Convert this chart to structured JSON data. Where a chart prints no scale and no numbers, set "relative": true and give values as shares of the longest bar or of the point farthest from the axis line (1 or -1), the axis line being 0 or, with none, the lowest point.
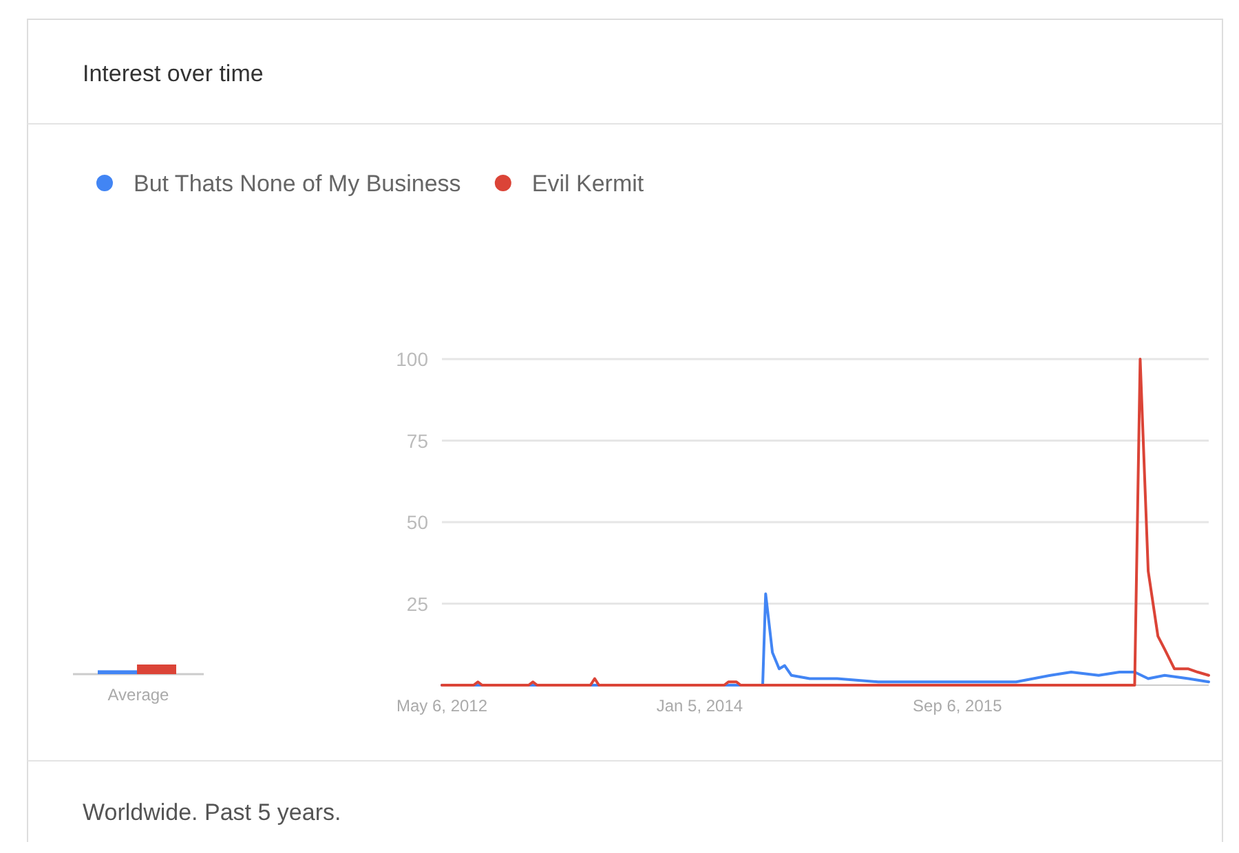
{
  "chart_data": [
    {
      "type": "line",
      "title": "Interest over time",
      "legend": "top left",
      "grid": "y",
      "xlim": [
        "2012-05-06",
        "2017-04-22"
      ],
      "ylim": [
        0,
        100
      ],
      "yticks": [
        25,
        50,
        75,
        100
      ],
      "xticks": [
        {
          "value": "2012-05-06",
          "label": "May 6, 2012"
        },
        {
          "value": "2014-01-05",
          "label": "Jan 5, 2014"
        },
        {
          "value": "2015-09-06",
          "label": "Sep 6, 2015"
        }
      ],
      "annotations": [
        "Worldwide. Past 5 years."
      ],
      "series": [
        {
          "name": "But Thats None of My Business",
          "color": "#4285f4",
          "x": [
            "2012-05-06",
            "2014-06-03",
            "2014-06-10",
            "2014-06-26",
            "2014-07-12",
            "2014-07-25",
            "2014-08-10",
            "2014-09-22",
            "2014-11-26",
            "2015-03-03",
            "2015-06-09",
            "2015-10-17",
            "2016-01-23",
            "2016-04-13",
            "2016-06-01",
            "2016-08-05",
            "2016-09-23",
            "2016-10-29",
            "2016-11-30",
            "2017-01-08",
            "2017-03-05",
            "2017-04-22"
          ],
          "values": [
            0,
            0,
            28,
            10,
            5,
            6,
            3,
            2,
            2,
            1,
            1,
            1,
            1,
            3,
            4,
            3,
            4,
            4,
            2,
            3,
            2,
            1
          ]
        },
        {
          "name": "Evil Kermit",
          "color": "#db4437",
          "x": [
            "2012-05-06",
            "2012-07-20",
            "2012-07-30",
            "2012-08-09",
            "2012-11-27",
            "2012-12-07",
            "2012-12-17",
            "2013-04-22",
            "2013-05-02",
            "2013-05-12",
            "2014-03-04",
            "2014-03-14",
            "2014-04-02",
            "2014-04-12",
            "2016-10-22",
            "2016-10-29",
            "2016-11-11",
            "2016-11-30",
            "2016-12-23",
            "2017-01-08",
            "2017-01-31",
            "2017-03-05",
            "2017-03-27",
            "2017-04-22"
          ],
          "values": [
            0,
            0,
            1,
            0,
            0,
            1,
            0,
            0,
            2,
            0,
            0,
            1,
            1,
            0,
            0,
            0,
            100,
            35,
            15,
            11,
            5,
            5,
            4,
            3
          ]
        }
      ]
    },
    {
      "type": "bar",
      "relative": true,
      "xlabel": "Average",
      "categories": [
        null,
        null
      ],
      "values": [
        0.4,
        1
      ],
      "colors": [
        "#4285f4",
        "#db4437"
      ]
    }
  ]
}
